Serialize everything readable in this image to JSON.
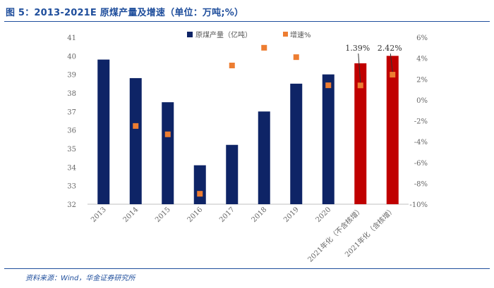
{
  "title": "图 5：2013-2021E 原煤产量及增速（单位：万吨;%）",
  "source": "资料来源：Wind，华金证券研究所",
  "colors": {
    "bar": "#0e2466",
    "bar_highlight": "#c00000",
    "marker": "#ed7d31",
    "accent": "#1f4e9c"
  },
  "chart_data": {
    "type": "bar",
    "categories": [
      "2013",
      "2014",
      "2015",
      "2016",
      "2017",
      "2018",
      "2019",
      "2020",
      "2021年化（不含核增）",
      "2021年化（含核增）"
    ],
    "series": [
      {
        "name": "原煤产量（亿吨）",
        "type": "bar",
        "axis": "left",
        "values": [
          39.8,
          38.8,
          37.5,
          34.1,
          35.2,
          37.0,
          38.5,
          39.0,
          39.6,
          40.0
        ],
        "highlight": [
          false,
          false,
          false,
          false,
          false,
          false,
          false,
          false,
          true,
          true
        ]
      },
      {
        "name": "增速%",
        "type": "scatter",
        "axis": "right",
        "values": [
          null,
          -2.5,
          -3.3,
          -9.0,
          3.3,
          5.0,
          4.1,
          1.4,
          1.39,
          2.42
        ]
      }
    ],
    "data_labels": [
      {
        "category_index": 8,
        "text": "1.39%"
      },
      {
        "category_index": 9,
        "text": "2.42%"
      }
    ],
    "left_axis": {
      "min": 32,
      "max": 41,
      "ticks": [
        "32",
        "33",
        "34",
        "35",
        "36",
        "37",
        "38",
        "39",
        "40",
        "41"
      ]
    },
    "right_axis": {
      "min": -10,
      "max": 6,
      "ticks": [
        "-10%",
        "-8%",
        "-6%",
        "-4%",
        "-2%",
        "0%",
        "2%",
        "4%",
        "6%"
      ]
    },
    "legend_position": "top-right",
    "grid": false
  }
}
